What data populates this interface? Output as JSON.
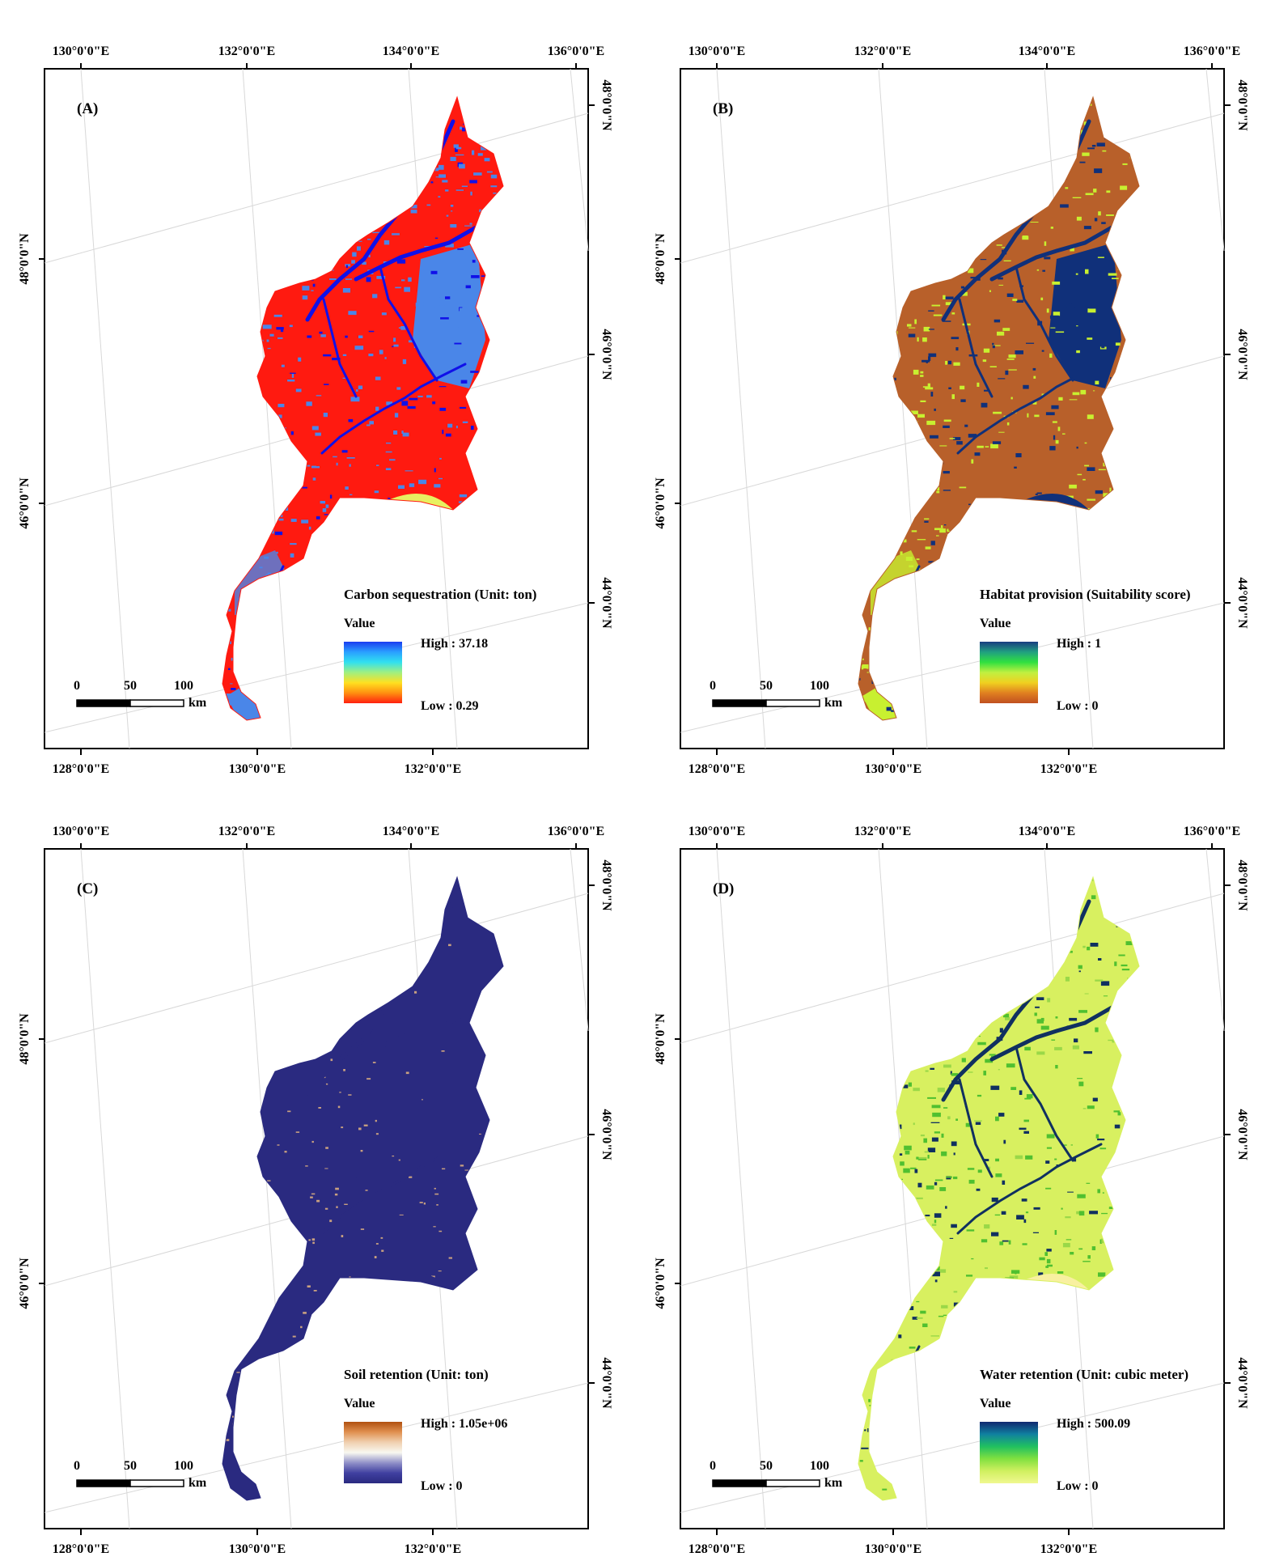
{
  "top_lon_labels": [
    "130°0'0\"E",
    "132°0'0\"E",
    "134°0'0\"E",
    "136°0'0\"E"
  ],
  "bottom_lon_labels": [
    "128°0'0\"E",
    "130°0'0\"E",
    "132°0'0\"E"
  ],
  "left_lat_labels": [
    "48°0'0\"N",
    "46°0'0\"N"
  ],
  "right_lat_labels": [
    "48°0'0\"N",
    "46°0'0\"N",
    "44°0'0\"N"
  ],
  "scale_bar": {
    "labels": [
      "0",
      "50",
      "100"
    ],
    "unit": "km"
  },
  "panels": [
    {
      "label": "(A)",
      "legend_title": "Carbon sequestration (Unit: ton)",
      "legend_value_label": "Value",
      "legend_high": "High : 37.18",
      "legend_low": "Low : 0.29",
      "colors": {
        "fill": "#ff1a10",
        "secondary": "#4a86e8",
        "water": "#1010e8",
        "patch": "#e8f060"
      },
      "ramp": [
        "#1a3cf0",
        "#2aa0ff",
        "#30e0f0",
        "#a0f080",
        "#ffe020",
        "#ff9010",
        "#ff2010"
      ]
    },
    {
      "label": "(B)",
      "legend_title": "Habitat provision (Suitability score)",
      "legend_value_label": "Value",
      "legend_high": "High : 1",
      "legend_low": "Low : 0",
      "colors": {
        "fill": "#b8602a",
        "secondary": "#c8f030",
        "water": "#10307a",
        "patch": "#10307a"
      },
      "ramp": [
        "#183c80",
        "#20a080",
        "#30e040",
        "#c0f040",
        "#f0d020",
        "#e08020",
        "#c05020"
      ]
    },
    {
      "label": "(C)",
      "legend_title": "Soil retention (Unit: ton)",
      "legend_value_label": "Value",
      "legend_high": "High : 1.05e+06",
      "legend_low": "Low : 0",
      "colors": {
        "fill": "#2a2a80",
        "secondary": "#c8a080",
        "water": "#2a2a80",
        "patch": "#2a2a80"
      },
      "ramp": [
        "#b05010",
        "#e09050",
        "#f0d0b0",
        "#f8f8f0",
        "#9090c8",
        "#4040a0",
        "#2a2a80"
      ]
    },
    {
      "label": "(D)",
      "legend_title": "Water retention (Unit: cubic meter)",
      "legend_value_label": "Value",
      "legend_high": "High : 500.09",
      "legend_low": "Low : 0",
      "colors": {
        "fill": "#d8f060",
        "secondary": "#50c030",
        "water": "#103060",
        "patch": "#f8f0a0"
      },
      "ramp": [
        "#102870",
        "#1080a0",
        "#20c060",
        "#80e040",
        "#d0f060",
        "#f0f890"
      ]
    }
  ]
}
